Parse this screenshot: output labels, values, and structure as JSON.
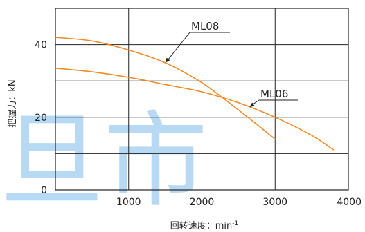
{
  "chart_data": {
    "type": "line",
    "xlabel": "回转速度：min",
    "xlabel_sup": "-1",
    "ylabel": "把握力：kN",
    "xlim": [
      0,
      4000
    ],
    "ylim": [
      0,
      50
    ],
    "x_ticks": [
      "1000",
      "2000",
      "3000",
      "4000"
    ],
    "y_ticks": [
      "0",
      "20",
      "40"
    ],
    "grid": true,
    "series": [
      {
        "name": "ML08",
        "color": "#f08a24",
        "x": [
          0,
          500,
          1000,
          1500,
          2000,
          2500,
          3000
        ],
        "y": [
          42,
          41,
          38.5,
          35,
          29.5,
          22,
          14
        ]
      },
      {
        "name": "ML06",
        "color": "#f08a24",
        "x": [
          0,
          500,
          1000,
          1500,
          2000,
          2500,
          3000,
          3500,
          3800
        ],
        "y": [
          33.5,
          32.5,
          31,
          29,
          27,
          24,
          20,
          15,
          11
        ]
      }
    ],
    "annotations": [
      {
        "text": "ML08",
        "series": "ML08",
        "at_x": 1500
      },
      {
        "text": "ML06",
        "series": "ML06",
        "at_x": 2650
      }
    ],
    "watermark": "旦市"
  }
}
